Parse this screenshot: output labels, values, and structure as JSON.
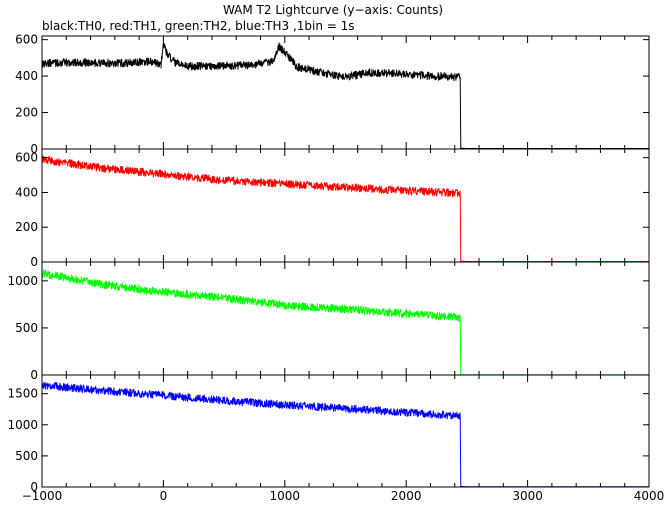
{
  "title": "WAM T2 Lightcurve (y−axis: Counts)",
  "subtitle": "black:TH0, red:TH1, green:TH2, blue:TH3 ,1bin = 1s",
  "chart_data": [
    {
      "type": "line",
      "series_name": "TH0",
      "color": "#000000",
      "xlim": [
        -1000,
        4000
      ],
      "ylim": [
        0,
        620
      ],
      "x_ticks": [
        -1000,
        0,
        1000,
        2000,
        3000,
        4000
      ],
      "y_ticks": [
        0,
        200,
        400,
        600
      ],
      "segments": [
        {
          "x": [
            -1000,
            -700,
            -400,
            -100,
            -20
          ],
          "y": [
            470,
            475,
            470,
            478,
            462
          ]
        },
        {
          "x": [
            -20,
            0,
            30,
            100,
            200,
            400,
            700,
            900
          ],
          "y": [
            462,
            580,
            520,
            470,
            455,
            455,
            460,
            480
          ]
        },
        {
          "x": [
            900,
            950,
            1000,
            1100,
            1300,
            1500,
            1700,
            2000,
            2200,
            2445
          ],
          "y": [
            480,
            565,
            530,
            450,
            420,
            395,
            420,
            410,
            400,
            395
          ]
        },
        {
          "x": [
            2445,
            2450,
            2500,
            4000
          ],
          "y": [
            395,
            5,
            3,
            3
          ]
        }
      ]
    },
    {
      "type": "line",
      "series_name": "TH1",
      "color": "#ff0000",
      "xlim": [
        -1000,
        4000
      ],
      "ylim": [
        0,
        650
      ],
      "x_ticks": [
        -1000,
        0,
        1000,
        2000,
        3000,
        4000
      ],
      "y_ticks": [
        0,
        200,
        400,
        600
      ],
      "segments": [
        {
          "x": [
            -1000,
            -500,
            0,
            500,
            1000,
            1500,
            2000,
            2445
          ],
          "y": [
            590,
            540,
            505,
            470,
            450,
            430,
            410,
            395
          ]
        },
        {
          "x": [
            2445,
            2450,
            2500,
            4000
          ],
          "y": [
            395,
            5,
            3,
            3
          ]
        }
      ]
    },
    {
      "type": "line",
      "series_name": "TH2",
      "color": "#00ff00",
      "xlim": [
        -1000,
        4000
      ],
      "ylim": [
        0,
        1200
      ],
      "x_ticks": [
        -1000,
        0,
        1000,
        2000,
        3000,
        4000
      ],
      "y_ticks": [
        0,
        500,
        1000
      ],
      "segments": [
        {
          "x": [
            -1000,
            -500,
            0,
            500,
            1000,
            1500,
            2000,
            2445
          ],
          "y": [
            1080,
            960,
            880,
            820,
            740,
            700,
            650,
            610
          ]
        },
        {
          "x": [
            2445,
            2450,
            2500,
            4000
          ],
          "y": [
            610,
            5,
            3,
            3
          ]
        }
      ]
    },
    {
      "type": "line",
      "series_name": "TH3",
      "color": "#0000ff",
      "xlim": [
        -1000,
        4000
      ],
      "ylim": [
        0,
        1800
      ],
      "x_ticks": [
        -1000,
        0,
        1000,
        2000,
        3000,
        4000
      ],
      "y_ticks": [
        0,
        500,
        1000,
        1500
      ],
      "segments": [
        {
          "x": [
            -1000,
            -500,
            0,
            500,
            1000,
            1500,
            2000,
            2445
          ],
          "y": [
            1640,
            1550,
            1470,
            1390,
            1320,
            1260,
            1200,
            1140
          ]
        },
        {
          "x": [
            2445,
            2450,
            2500,
            4000
          ],
          "y": [
            1140,
            10,
            5,
            5
          ]
        }
      ]
    }
  ]
}
